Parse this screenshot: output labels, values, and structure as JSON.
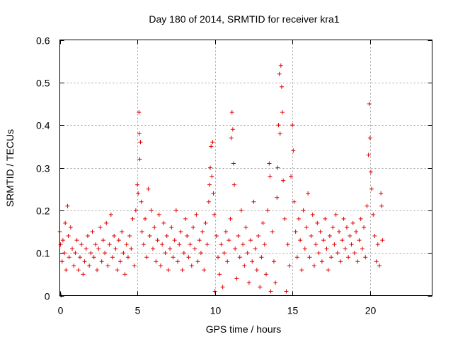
{
  "chart_data": {
    "type": "scatter",
    "title": "Day 180 of 2014, SRMTID for receiver kra1",
    "xlabel": "GPS time / hours",
    "ylabel": "SRMTID / TECUs",
    "xlim": [
      0,
      24
    ],
    "ylim": [
      0,
      0.6
    ],
    "xticks": [
      0,
      5,
      10,
      15,
      20
    ],
    "yticks": [
      0,
      0.1,
      0.2,
      0.3,
      0.4,
      0.5,
      0.6
    ],
    "xtick_labels": [
      "0",
      "5",
      "10",
      "15",
      "20"
    ],
    "ytick_labels": [
      "0",
      "0.1",
      "0.2",
      "0.3",
      "0.4",
      "0.5",
      "0.6"
    ],
    "grid": true,
    "marker": "plus",
    "marker_color": "#e00000",
    "series": [
      {
        "name": "SRMTID",
        "points": [
          [
            0.0,
            0.15
          ],
          [
            0.05,
            0.12
          ],
          [
            0.1,
            0.0
          ],
          [
            0.15,
            0.08
          ],
          [
            0.2,
            0.13
          ],
          [
            0.3,
            0.1
          ],
          [
            0.35,
            0.17
          ],
          [
            0.4,
            0.06
          ],
          [
            0.5,
            0.21
          ],
          [
            0.55,
            0.14
          ],
          [
            0.6,
            0.09
          ],
          [
            0.7,
            0.16
          ],
          [
            0.8,
            0.11
          ],
          [
            0.9,
            0.07
          ],
          [
            1.0,
            0.1
          ],
          [
            1.1,
            0.13
          ],
          [
            1.2,
            0.06
          ],
          [
            1.3,
            0.09
          ],
          [
            1.4,
            0.12
          ],
          [
            1.5,
            0.05
          ],
          [
            1.6,
            0.08
          ],
          [
            1.7,
            0.11
          ],
          [
            1.8,
            0.14
          ],
          [
            1.9,
            0.07
          ],
          [
            2.0,
            0.1
          ],
          [
            2.1,
            0.15
          ],
          [
            2.2,
            0.09
          ],
          [
            2.3,
            0.12
          ],
          [
            2.4,
            0.06
          ],
          [
            2.5,
            0.11
          ],
          [
            2.6,
            0.16
          ],
          [
            2.7,
            0.08
          ],
          [
            2.8,
            0.13
          ],
          [
            2.9,
            0.1
          ],
          [
            3.0,
            0.17
          ],
          [
            3.1,
            0.07
          ],
          [
            3.2,
            0.12
          ],
          [
            3.3,
            0.19
          ],
          [
            3.4,
            0.09
          ],
          [
            3.5,
            0.14
          ],
          [
            3.6,
            0.11
          ],
          [
            3.7,
            0.06
          ],
          [
            3.8,
            0.13
          ],
          [
            3.9,
            0.08
          ],
          [
            4.0,
            0.15
          ],
          [
            4.1,
            0.1
          ],
          [
            4.2,
            0.05
          ],
          [
            4.3,
            0.12
          ],
          [
            4.4,
            0.09
          ],
          [
            4.5,
            0.14
          ],
          [
            4.6,
            0.11
          ],
          [
            4.7,
            0.18
          ],
          [
            4.8,
            0.07
          ],
          [
            4.9,
            0.2
          ],
          [
            5.0,
            0.26
          ],
          [
            5.05,
            0.24
          ],
          [
            5.1,
            0.43
          ],
          [
            5.12,
            0.38
          ],
          [
            5.15,
            0.32
          ],
          [
            5.2,
            0.36
          ],
          [
            5.25,
            0.22
          ],
          [
            5.3,
            0.15
          ],
          [
            5.4,
            0.12
          ],
          [
            5.5,
            0.18
          ],
          [
            5.6,
            0.09
          ],
          [
            5.7,
            0.25
          ],
          [
            5.8,
            0.14
          ],
          [
            5.9,
            0.2
          ],
          [
            6.0,
            0.11
          ],
          [
            6.1,
            0.16
          ],
          [
            6.2,
            0.08
          ],
          [
            6.3,
            0.13
          ],
          [
            6.4,
            0.19
          ],
          [
            6.5,
            0.07
          ],
          [
            6.6,
            0.12
          ],
          [
            6.7,
            0.17
          ],
          [
            6.8,
            0.1
          ],
          [
            6.9,
            0.14
          ],
          [
            7.0,
            0.06
          ],
          [
            7.1,
            0.11
          ],
          [
            7.2,
            0.16
          ],
          [
            7.3,
            0.09
          ],
          [
            7.4,
            0.13
          ],
          [
            7.5,
            0.2
          ],
          [
            7.6,
            0.08
          ],
          [
            7.7,
            0.12
          ],
          [
            7.8,
            0.15
          ],
          [
            7.9,
            0.06
          ],
          [
            8.0,
            0.1
          ],
          [
            8.1,
            0.18
          ],
          [
            8.2,
            0.14
          ],
          [
            8.3,
            0.09
          ],
          [
            8.4,
            0.12
          ],
          [
            8.5,
            0.07
          ],
          [
            8.6,
            0.16
          ],
          [
            8.7,
            0.11
          ],
          [
            8.8,
            0.19
          ],
          [
            8.9,
            0.08
          ],
          [
            9.0,
            0.13
          ],
          [
            9.1,
            0.1
          ],
          [
            9.2,
            0.15
          ],
          [
            9.3,
            0.06
          ],
          [
            9.4,
            0.17
          ],
          [
            9.5,
            0.12
          ],
          [
            9.6,
            0.22
          ],
          [
            9.65,
            0.26
          ],
          [
            9.7,
            0.3
          ],
          [
            9.75,
            0.35
          ],
          [
            9.8,
            0.28
          ],
          [
            9.85,
            0.36
          ],
          [
            9.9,
            0.24
          ],
          [
            9.95,
            0.19
          ],
          [
            10.0,
            0.01
          ],
          [
            10.1,
            0.14
          ],
          [
            10.2,
            0.09
          ],
          [
            10.3,
            0.05
          ],
          [
            10.4,
            0.12
          ],
          [
            10.5,
            0.02
          ],
          [
            10.6,
            0.1
          ],
          [
            10.7,
            0.15
          ],
          [
            10.8,
            0.08
          ],
          [
            10.9,
            0.13
          ],
          [
            11.0,
            0.18
          ],
          [
            11.05,
            0.37
          ],
          [
            11.1,
            0.43
          ],
          [
            11.15,
            0.39
          ],
          [
            11.2,
            0.31
          ],
          [
            11.25,
            0.26
          ],
          [
            11.3,
            0.11
          ],
          [
            11.4,
            0.04
          ],
          [
            11.5,
            0.14
          ],
          [
            11.6,
            0.09
          ],
          [
            11.7,
            0.2
          ],
          [
            11.8,
            0.12
          ],
          [
            11.9,
            0.07
          ],
          [
            12.0,
            0.16
          ],
          [
            12.1,
            0.1
          ],
          [
            12.2,
            0.03
          ],
          [
            12.3,
            0.13
          ],
          [
            12.4,
            0.08
          ],
          [
            12.5,
            0.22
          ],
          [
            12.6,
            0.11
          ],
          [
            12.7,
            0.06
          ],
          [
            12.8,
            0.14
          ],
          [
            12.9,
            0.02
          ],
          [
            13.0,
            0.09
          ],
          [
            13.1,
            0.17
          ],
          [
            13.2,
            0.12
          ],
          [
            13.3,
            0.05
          ],
          [
            13.4,
            0.2
          ],
          [
            13.5,
            0.31
          ],
          [
            13.55,
            0.28
          ],
          [
            13.6,
            0.01
          ],
          [
            13.7,
            0.15
          ],
          [
            13.8,
            0.08
          ],
          [
            13.9,
            0.03
          ],
          [
            14.0,
            0.23
          ],
          [
            14.05,
            0.3
          ],
          [
            14.1,
            0.4
          ],
          [
            14.15,
            0.52
          ],
          [
            14.2,
            0.38
          ],
          [
            14.25,
            0.54
          ],
          [
            14.3,
            0.49
          ],
          [
            14.35,
            0.43
          ],
          [
            14.4,
            0.27
          ],
          [
            14.5,
            0.18
          ],
          [
            14.6,
            0.01
          ],
          [
            14.7,
            0.12
          ],
          [
            14.8,
            0.07
          ],
          [
            14.9,
            0.28
          ],
          [
            15.0,
            0.4
          ],
          [
            15.05,
            0.34
          ],
          [
            15.1,
            0.22
          ],
          [
            15.2,
            0.15
          ],
          [
            15.3,
            0.09
          ],
          [
            15.4,
            0.18
          ],
          [
            15.5,
            0.13
          ],
          [
            15.6,
            0.06
          ],
          [
            15.7,
            0.2
          ],
          [
            15.8,
            0.11
          ],
          [
            15.9,
            0.16
          ],
          [
            16.0,
            0.24
          ],
          [
            16.1,
            0.09
          ],
          [
            16.2,
            0.14
          ],
          [
            16.3,
            0.19
          ],
          [
            16.4,
            0.07
          ],
          [
            16.5,
            0.12
          ],
          [
            16.6,
            0.17
          ],
          [
            16.7,
            0.1
          ],
          [
            16.8,
            0.15
          ],
          [
            16.9,
            0.08
          ],
          [
            17.0,
            0.13
          ],
          [
            17.1,
            0.18
          ],
          [
            17.2,
            0.11
          ],
          [
            17.3,
            0.06
          ],
          [
            17.4,
            0.14
          ],
          [
            17.5,
            0.09
          ],
          [
            17.6,
            0.16
          ],
          [
            17.7,
            0.12
          ],
          [
            17.8,
            0.19
          ],
          [
            17.9,
            0.1
          ],
          [
            18.0,
            0.15
          ],
          [
            18.1,
            0.08
          ],
          [
            18.2,
            0.13
          ],
          [
            18.3,
            0.18
          ],
          [
            18.4,
            0.11
          ],
          [
            18.5,
            0.16
          ],
          [
            18.6,
            0.09
          ],
          [
            18.7,
            0.14
          ],
          [
            18.8,
            0.12
          ],
          [
            18.9,
            0.17
          ],
          [
            19.0,
            0.1
          ],
          [
            19.1,
            0.15
          ],
          [
            19.2,
            0.08
          ],
          [
            19.3,
            0.13
          ],
          [
            19.4,
            0.18
          ],
          [
            19.5,
            0.11
          ],
          [
            19.6,
            0.16
          ],
          [
            19.7,
            0.09
          ],
          [
            19.8,
            0.21
          ],
          [
            19.9,
            0.33
          ],
          [
            19.95,
            0.45
          ],
          [
            20.0,
            0.37
          ],
          [
            20.05,
            0.29
          ],
          [
            20.1,
            0.25
          ],
          [
            20.2,
            0.19
          ],
          [
            20.3,
            0.14
          ],
          [
            20.4,
            0.08
          ],
          [
            20.5,
            0.12
          ],
          [
            20.6,
            0.07
          ],
          [
            20.7,
            0.24
          ],
          [
            20.75,
            0.21
          ],
          [
            20.8,
            0.13
          ]
        ]
      }
    ]
  }
}
